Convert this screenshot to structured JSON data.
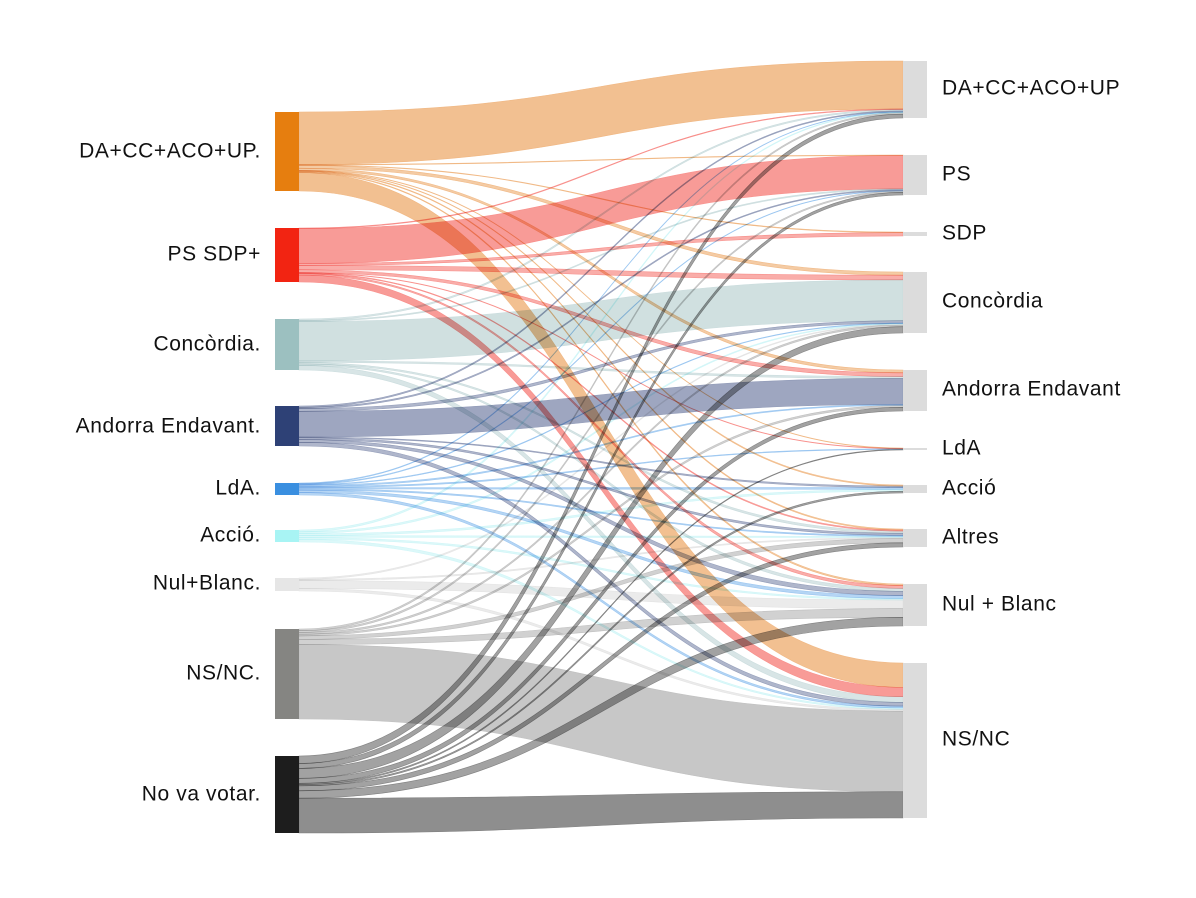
{
  "chart_data": {
    "type": "sankey",
    "left_nodes": [
      {
        "id": "da",
        "label": "DA+CC+ACO+UP.",
        "color": "#e67e0f",
        "flow_color": "#f0b57e"
      },
      {
        "id": "ps",
        "label": "PS SDP+",
        "color": "#f22412",
        "flow_color": "#f78a85"
      },
      {
        "id": "con",
        "label": "Concòrdia.",
        "color": "#9cc0c0",
        "flow_color": "#c8dadb"
      },
      {
        "id": "ae",
        "label": "Andorra Endavant.",
        "color": "#2e4176",
        "flow_color": "#8d97b5"
      },
      {
        "id": "lda",
        "label": "LdA.",
        "color": "#3a8fe0",
        "flow_color": "#96c3ef"
      },
      {
        "id": "acc",
        "label": "Acció.",
        "color": "#a8f4f4",
        "flow_color": "#cdf5f7"
      },
      {
        "id": "nb",
        "label": "Nul+Blanc.",
        "color": "#e6e6e6",
        "flow_color": "#e2e2e2"
      },
      {
        "id": "ns",
        "label": "NS/NC.",
        "color": "#858582",
        "flow_color": "#bdbdbd"
      },
      {
        "id": "nv",
        "label": "No va votar.",
        "color": "#1d1d1d",
        "flow_color": "#7a7a7a"
      }
    ],
    "right_nodes": [
      {
        "id": "r_da",
        "label": "DA+CC+ACO+UP"
      },
      {
        "id": "r_ps",
        "label": "PS"
      },
      {
        "id": "r_sdp",
        "label": "SDP"
      },
      {
        "id": "r_con",
        "label": "Concòrdia"
      },
      {
        "id": "r_ae",
        "label": "Andorra Endavant"
      },
      {
        "id": "r_lda",
        "label": "LdA"
      },
      {
        "id": "r_acc",
        "label": "Acció"
      },
      {
        "id": "r_alt",
        "label": "Altres"
      },
      {
        "id": "r_nb",
        "label": "Nul + Blanc"
      },
      {
        "id": "r_ns",
        "label": "NS/NC"
      }
    ],
    "right_node_color": "#dcdcdc",
    "flows": [
      {
        "from": "da",
        "to": "r_da",
        "value": 37
      },
      {
        "from": "da",
        "to": "r_ps",
        "value": 0.4
      },
      {
        "from": "da",
        "to": "r_sdp",
        "value": 0.3
      },
      {
        "from": "da",
        "to": "r_con",
        "value": 2
      },
      {
        "from": "da",
        "to": "r_ae",
        "value": 1.5
      },
      {
        "from": "da",
        "to": "r_lda",
        "value": 0.3
      },
      {
        "from": "da",
        "to": "r_acc",
        "value": 0.3
      },
      {
        "from": "da",
        "to": "r_alt",
        "value": 0.5
      },
      {
        "from": "da",
        "to": "r_nb",
        "value": 0.5
      },
      {
        "from": "da",
        "to": "r_ns",
        "value": 13
      },
      {
        "from": "ps",
        "to": "r_da",
        "value": 0.5
      },
      {
        "from": "ps",
        "to": "r_ps",
        "value": 25
      },
      {
        "from": "ps",
        "to": "r_sdp",
        "value": 1.5
      },
      {
        "from": "ps",
        "to": "r_con",
        "value": 3
      },
      {
        "from": "ps",
        "to": "r_ae",
        "value": 2
      },
      {
        "from": "ps",
        "to": "r_lda",
        "value": 0.3
      },
      {
        "from": "ps",
        "to": "r_alt",
        "value": 0.5
      },
      {
        "from": "ps",
        "to": "r_nb",
        "value": 1
      },
      {
        "from": "ps",
        "to": "r_ns",
        "value": 5
      },
      {
        "from": "con",
        "to": "r_da",
        "value": 1
      },
      {
        "from": "con",
        "to": "r_ps",
        "value": 0.7
      },
      {
        "from": "con",
        "to": "r_con",
        "value": 26
      },
      {
        "from": "con",
        "to": "r_ae",
        "value": 1
      },
      {
        "from": "con",
        "to": "r_alt",
        "value": 1
      },
      {
        "from": "con",
        "to": "r_nb",
        "value": 1
      },
      {
        "from": "con",
        "to": "r_ns",
        "value": 3
      },
      {
        "from": "ae",
        "to": "r_da",
        "value": 0.7
      },
      {
        "from": "ae",
        "to": "r_ps",
        "value": 0.7
      },
      {
        "from": "ae",
        "to": "r_con",
        "value": 1.5
      },
      {
        "from": "ae",
        "to": "r_ae",
        "value": 14
      },
      {
        "from": "ae",
        "to": "r_acc",
        "value": 0.4
      },
      {
        "from": "ae",
        "to": "r_alt",
        "value": 1
      },
      {
        "from": "ae",
        "to": "r_nb",
        "value": 1.5
      },
      {
        "from": "ae",
        "to": "r_ns",
        "value": 2
      },
      {
        "from": "lda",
        "to": "r_da",
        "value": 0.3
      },
      {
        "from": "lda",
        "to": "r_ps",
        "value": 0.3
      },
      {
        "from": "lda",
        "to": "r_con",
        "value": 0.3
      },
      {
        "from": "lda",
        "to": "r_ae",
        "value": 0.5
      },
      {
        "from": "lda",
        "to": "r_lda",
        "value": 0.5
      },
      {
        "from": "lda",
        "to": "r_acc",
        "value": 0.5
      },
      {
        "from": "lda",
        "to": "r_alt",
        "value": 0.5
      },
      {
        "from": "lda",
        "to": "r_nb",
        "value": 1
      },
      {
        "from": "lda",
        "to": "r_ns",
        "value": 1
      },
      {
        "from": "acc",
        "to": "r_da",
        "value": 0.5
      },
      {
        "from": "acc",
        "to": "r_con",
        "value": 0.5
      },
      {
        "from": "acc",
        "to": "r_acc",
        "value": 0.5
      },
      {
        "from": "acc",
        "to": "r_alt",
        "value": 0.5
      },
      {
        "from": "acc",
        "to": "r_nb",
        "value": 0.5
      },
      {
        "from": "acc",
        "to": "r_ns",
        "value": 0.7
      },
      {
        "from": "nb",
        "to": "r_con",
        "value": 0.5
      },
      {
        "from": "nb",
        "to": "r_alt",
        "value": 0.5
      },
      {
        "from": "nb",
        "to": "r_nb",
        "value": 3
      },
      {
        "from": "nb",
        "to": "r_ns",
        "value": 1
      },
      {
        "from": "ns",
        "to": "r_da",
        "value": 1
      },
      {
        "from": "ns",
        "to": "r_ps",
        "value": 1
      },
      {
        "from": "ns",
        "to": "r_con",
        "value": 1
      },
      {
        "from": "ns",
        "to": "r_ae",
        "value": 1
      },
      {
        "from": "ns",
        "to": "r_alt",
        "value": 2
      },
      {
        "from": "ns",
        "to": "r_nb",
        "value": 3
      },
      {
        "from": "ns",
        "to": "r_ns",
        "value": 43
      },
      {
        "from": "nv",
        "to": "r_da",
        "value": 3
      },
      {
        "from": "nv",
        "to": "r_ps",
        "value": 2
      },
      {
        "from": "nv",
        "to": "r_con",
        "value": 4
      },
      {
        "from": "nv",
        "to": "r_ae",
        "value": 2
      },
      {
        "from": "nv",
        "to": "r_lda",
        "value": 0.5
      },
      {
        "from": "nv",
        "to": "r_acc",
        "value": 0.5
      },
      {
        "from": "nv",
        "to": "r_alt",
        "value": 2
      },
      {
        "from": "nv",
        "to": "r_nb",
        "value": 3
      },
      {
        "from": "nv",
        "to": "r_ns",
        "value": 14
      }
    ]
  }
}
